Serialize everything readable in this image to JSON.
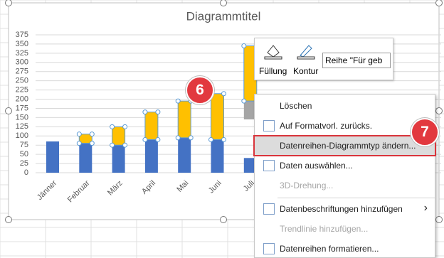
{
  "chart_data": {
    "type": "bar",
    "title": "Diagrammtitel",
    "categories": [
      "Jänner",
      "Februar",
      "März",
      "April",
      "Mai",
      "Juni",
      "Juli"
    ],
    "series": [
      {
        "color": "#4472c4",
        "values": [
          85,
          80,
          75,
          90,
          95,
          90,
          40
        ]
      },
      {
        "color": "none",
        "values": [
          null,
          null,
          null,
          null,
          null,
          null,
          105
        ]
      },
      {
        "color": "#a5a5a5",
        "values": [
          null,
          null,
          null,
          null,
          null,
          null,
          50
        ]
      },
      {
        "color": "#ffc000",
        "values": [
          null,
          25,
          50,
          75,
          100,
          125,
          150
        ],
        "selected": true
      }
    ],
    "ylim": [
      0,
      375
    ],
    "yticks": [
      0,
      25,
      50,
      75,
      100,
      125,
      150,
      175,
      200,
      225,
      250,
      275,
      300,
      325,
      350,
      375
    ],
    "grid": true
  },
  "toolbar": {
    "fill": "Füllung",
    "outline": "Kontur",
    "series_select": "Reihe \"Für geb"
  },
  "context_menu": {
    "items": [
      {
        "label": "Löschen"
      },
      {
        "label": "Auf Formatvorl. zurücks."
      },
      {
        "label": "Datenreihen-Diagrammtyp ändern...",
        "highlighted": true
      },
      {
        "label": "Daten auswählen..."
      },
      {
        "label": "3D-Drehung...",
        "disabled": true
      },
      {
        "label": "Datenbeschriftungen hinzufügen",
        "submenu": true,
        "separator_before": true
      },
      {
        "label": "Trendlinie hinzufügen...",
        "disabled": true
      },
      {
        "label": "Datenreihen formatieren..."
      }
    ]
  },
  "badges": [
    "6",
    "7"
  ]
}
